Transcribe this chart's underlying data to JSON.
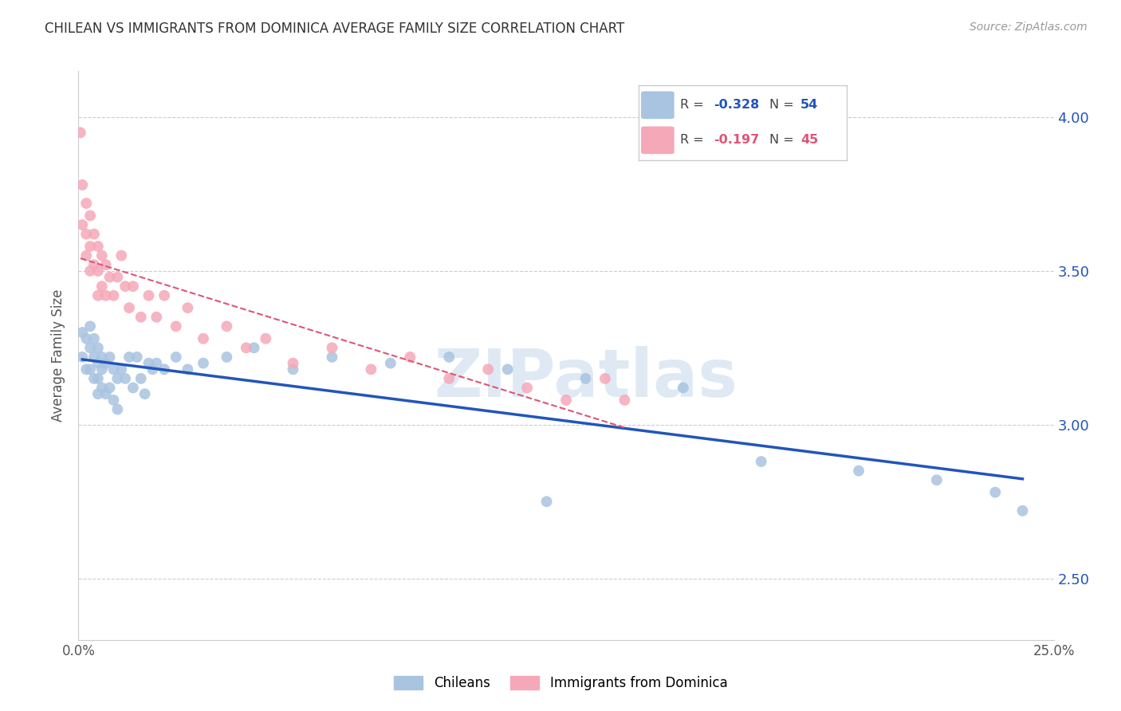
{
  "title": "CHILEAN VS IMMIGRANTS FROM DOMINICA AVERAGE FAMILY SIZE CORRELATION CHART",
  "source": "Source: ZipAtlas.com",
  "ylabel": "Average Family Size",
  "yticks": [
    2.5,
    3.0,
    3.5,
    4.0
  ],
  "xmin": 0.0,
  "xmax": 0.25,
  "ymin": 2.3,
  "ymax": 4.15,
  "watermark": "ZIPatlas",
  "legend_r1": "R = -0.328",
  "legend_n1": "N = 54",
  "legend_r2": "R = -0.197",
  "legend_n2": "N = 45",
  "legend_label1": "Chileans",
  "legend_label2": "Immigrants from Dominica",
  "blue_color": "#a8c4e0",
  "blue_line_color": "#2255bb",
  "pink_color": "#f5a8b8",
  "pink_line_color": "#dd5577",
  "chilean_x": [
    0.001,
    0.001,
    0.002,
    0.002,
    0.003,
    0.003,
    0.003,
    0.004,
    0.004,
    0.004,
    0.005,
    0.005,
    0.005,
    0.005,
    0.006,
    0.006,
    0.006,
    0.007,
    0.007,
    0.008,
    0.008,
    0.009,
    0.009,
    0.01,
    0.01,
    0.011,
    0.012,
    0.013,
    0.014,
    0.015,
    0.016,
    0.017,
    0.018,
    0.019,
    0.02,
    0.022,
    0.025,
    0.028,
    0.032,
    0.038,
    0.045,
    0.055,
    0.065,
    0.08,
    0.095,
    0.11,
    0.13,
    0.155,
    0.175,
    0.2,
    0.22,
    0.235,
    0.242,
    0.12
  ],
  "chilean_y": [
    3.3,
    3.22,
    3.28,
    3.18,
    3.32,
    3.25,
    3.18,
    3.28,
    3.22,
    3.15,
    3.25,
    3.2,
    3.15,
    3.1,
    3.22,
    3.18,
    3.12,
    3.2,
    3.1,
    3.22,
    3.12,
    3.18,
    3.08,
    3.15,
    3.05,
    3.18,
    3.15,
    3.22,
    3.12,
    3.22,
    3.15,
    3.1,
    3.2,
    3.18,
    3.2,
    3.18,
    3.22,
    3.18,
    3.2,
    3.22,
    3.25,
    3.18,
    3.22,
    3.2,
    3.22,
    3.18,
    3.15,
    3.12,
    2.88,
    2.85,
    2.82,
    2.78,
    2.72,
    2.75
  ],
  "dominica_x": [
    0.0005,
    0.001,
    0.001,
    0.002,
    0.002,
    0.002,
    0.003,
    0.003,
    0.003,
    0.004,
    0.004,
    0.005,
    0.005,
    0.005,
    0.006,
    0.006,
    0.007,
    0.007,
    0.008,
    0.009,
    0.01,
    0.011,
    0.012,
    0.013,
    0.014,
    0.016,
    0.018,
    0.02,
    0.022,
    0.025,
    0.028,
    0.032,
    0.038,
    0.043,
    0.048,
    0.055,
    0.065,
    0.075,
    0.085,
    0.095,
    0.105,
    0.115,
    0.125,
    0.135,
    0.14
  ],
  "dominica_y": [
    3.95,
    3.78,
    3.65,
    3.72,
    3.62,
    3.55,
    3.68,
    3.58,
    3.5,
    3.62,
    3.52,
    3.58,
    3.5,
    3.42,
    3.55,
    3.45,
    3.52,
    3.42,
    3.48,
    3.42,
    3.48,
    3.55,
    3.45,
    3.38,
    3.45,
    3.35,
    3.42,
    3.35,
    3.42,
    3.32,
    3.38,
    3.28,
    3.32,
    3.25,
    3.28,
    3.2,
    3.25,
    3.18,
    3.22,
    3.15,
    3.18,
    3.12,
    3.08,
    3.15,
    3.08
  ]
}
